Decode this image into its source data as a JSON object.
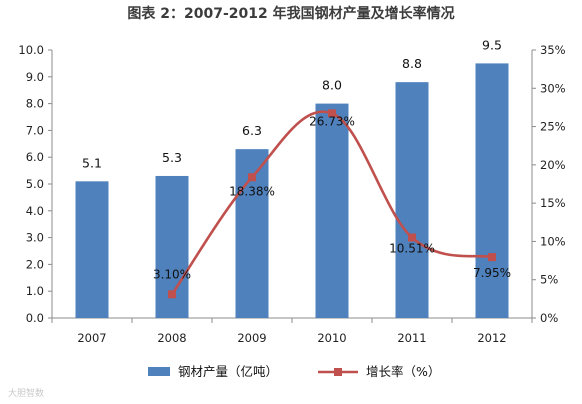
{
  "chart_data": {
    "type": "bar",
    "title": "图表 2：2007-2012 年我国钢材产量及增长率情况",
    "categories": [
      "2007",
      "2008",
      "2009",
      "2010",
      "2011",
      "2012"
    ],
    "series": [
      {
        "name": "钢材产量（亿吨）",
        "type": "bar",
        "axis": "left",
        "values": [
          5.1,
          5.3,
          6.3,
          8.0,
          8.8,
          9.5
        ],
        "labels": [
          "5.1",
          "5.3",
          "6.3",
          "8.0",
          "8.8",
          "9.5"
        ],
        "color": "#4f81bd"
      },
      {
        "name": "增长率（%）",
        "type": "line",
        "axis": "right",
        "x": [
          "2008",
          "2009",
          "2010",
          "2011",
          "2012"
        ],
        "values": [
          3.1,
          18.38,
          26.73,
          10.51,
          7.95
        ],
        "labels": [
          "3.10%",
          "18.38%",
          "26.73%",
          "10.51%",
          "7.95%"
        ],
        "color": "#c0504d"
      }
    ],
    "y_left": {
      "ylim": [
        0,
        10
      ],
      "ticks": [
        "0.0",
        "1.0",
        "2.0",
        "3.0",
        "4.0",
        "5.0",
        "6.0",
        "7.0",
        "8.0",
        "9.0",
        "10.0"
      ]
    },
    "y_right": {
      "ylim": [
        0,
        35
      ],
      "ticks": [
        "0%",
        "5%",
        "10%",
        "15%",
        "20%",
        "25%",
        "30%",
        "35%"
      ]
    },
    "grid": false,
    "legend": "bottom"
  },
  "watermark": "大胆智数"
}
